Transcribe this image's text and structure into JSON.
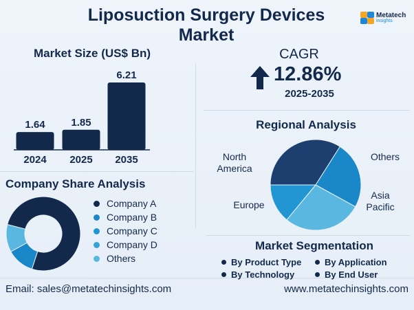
{
  "header": {
    "title_line1": "Liposuction Surgery Devices",
    "title_line2": "Market",
    "logo_name": "Metatech",
    "logo_sub": "insights"
  },
  "market_size": {
    "title": "Market Size (US$ Bn)"
  },
  "cagr": {
    "label": "CAGR",
    "value": "12.86%",
    "years": "2025-2035"
  },
  "regional": {
    "title": "Regional Analysis"
  },
  "company_share": {
    "title": "Company Share Analysis"
  },
  "segmentation": {
    "title": "Market Segmentation",
    "items": [
      "By Product Type",
      "By Application",
      "By Technology",
      "By End User"
    ]
  },
  "footer": {
    "email": "Email: sales@metatechinsights.com",
    "website": "www.metatechinsights.com"
  },
  "colors": {
    "navy": "#13294b",
    "dark_blue": "#1c3f70",
    "blue": "#1a87c9",
    "light_blue": "#36a3d9",
    "sky": "#5ab8e0",
    "pale": "#7dc7e8"
  },
  "chart_data": [
    {
      "type": "bar",
      "title": "Market Size (US$ Bn)",
      "categories": [
        "2024",
        "2025",
        "2035"
      ],
      "values": [
        1.64,
        1.85,
        6.21
      ],
      "data_labels": [
        "1.64",
        "1.85",
        "6.21"
      ],
      "ylim": [
        0,
        6.21
      ],
      "grid": false
    },
    {
      "type": "pie",
      "title": "Regional Analysis",
      "categories": [
        "North America",
        "Others",
        "Asia Pacific",
        "Europe"
      ],
      "values": [
        34,
        24,
        28,
        14
      ],
      "colors": [
        "#1c3f70",
        "#1a87c9",
        "#5ab8e0",
        "#2196d3"
      ]
    },
    {
      "type": "pie",
      "title": "Company Share Analysis",
      "categories": [
        "Company A",
        "Company B",
        "Company C",
        "Company D",
        "Others"
      ],
      "values": [
        76,
        12,
        12,
        0,
        0
      ],
      "colors": [
        "#13294b",
        "#1a87c9",
        "#5ab8e0",
        "#36a3d9",
        "#7dc7e8"
      ],
      "legend_colors": [
        "#13294b",
        "#1a87c9",
        "#2196d3",
        "#36a3d9",
        "#5ab8e0"
      ]
    }
  ]
}
